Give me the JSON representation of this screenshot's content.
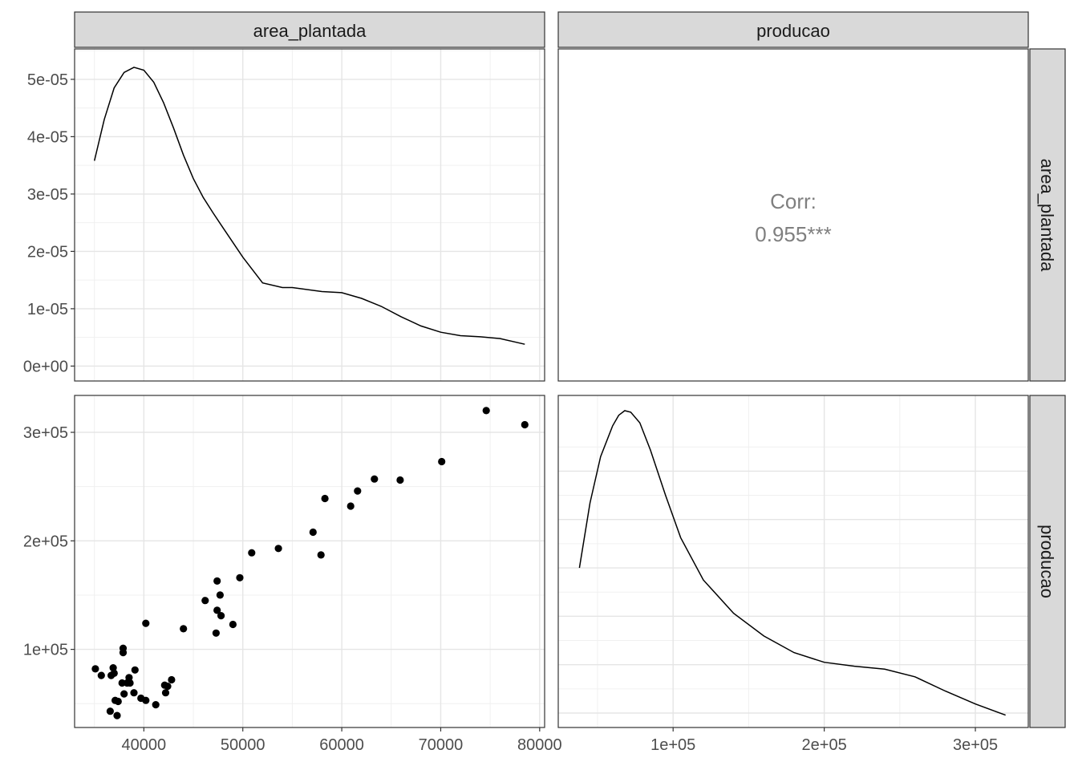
{
  "chart_data": {
    "type": "scatter-matrix",
    "variables": [
      "area_plantada",
      "producao"
    ],
    "panels": [
      {
        "row": 0,
        "col": 0,
        "type": "density",
        "variable": "area_plantada",
        "xlim": [
          33000,
          80500
        ],
        "ylim": [
          -2.6e-06,
          5.53e-05
        ],
        "xticks": [
          40000,
          50000,
          60000,
          70000,
          80000
        ],
        "yticks": [
          0,
          1e-05,
          2e-05,
          3e-05,
          4e-05,
          5e-05
        ],
        "ytick_labels": [
          "0e+00",
          "1e-05",
          "2e-05",
          "3e-05",
          "4e-05",
          "5e-05"
        ],
        "curve": [
          [
            35000,
            3.58e-05
          ],
          [
            36000,
            4.3e-05
          ],
          [
            37000,
            4.85e-05
          ],
          [
            38000,
            5.12e-05
          ],
          [
            39000,
            5.21e-05
          ],
          [
            40000,
            5.16e-05
          ],
          [
            41000,
            4.95e-05
          ],
          [
            42000,
            4.59e-05
          ],
          [
            43000,
            4.15e-05
          ],
          [
            44000,
            3.68e-05
          ],
          [
            45000,
            3.27e-05
          ],
          [
            46000,
            2.94e-05
          ],
          [
            47000,
            2.67e-05
          ],
          [
            48000,
            2.41e-05
          ],
          [
            50000,
            1.9e-05
          ],
          [
            52000,
            1.45e-05
          ],
          [
            54000,
            1.37e-05
          ],
          [
            55000,
            1.37e-05
          ],
          [
            58000,
            1.3e-05
          ],
          [
            60000,
            1.28e-05
          ],
          [
            62000,
            1.18e-05
          ],
          [
            64000,
            1.04e-05
          ],
          [
            66000,
            8.6e-06
          ],
          [
            68000,
            7e-06
          ],
          [
            70000,
            5.9e-06
          ],
          [
            72000,
            5.3e-06
          ],
          [
            74000,
            5.1e-06
          ],
          [
            76000,
            4.8e-06
          ],
          [
            78500,
            3.8e-06
          ]
        ]
      },
      {
        "row": 0,
        "col": 1,
        "type": "corr",
        "label": "Corr:",
        "value": "0.955***"
      },
      {
        "row": 1,
        "col": 0,
        "type": "scatter",
        "xlim": [
          33000,
          80500
        ],
        "ylim": [
          28000,
          334000
        ],
        "xticks": [
          40000,
          50000,
          60000,
          70000,
          80000
        ],
        "yticks": [
          100000,
          200000,
          300000
        ],
        "ytick_labels": [
          "1e+05",
          "2e+05",
          "3e+05"
        ],
        "points": [
          [
            35100,
            82000
          ],
          [
            35700,
            76000
          ],
          [
            36600,
            43000
          ],
          [
            36700,
            76000
          ],
          [
            36900,
            83000
          ],
          [
            37000,
            78000
          ],
          [
            37100,
            53000
          ],
          [
            37300,
            39000
          ],
          [
            37400,
            52000
          ],
          [
            37800,
            69000
          ],
          [
            37900,
            101000
          ],
          [
            37900,
            97000
          ],
          [
            38000,
            59000
          ],
          [
            38300,
            69000
          ],
          [
            38500,
            74000
          ],
          [
            38600,
            69000
          ],
          [
            39000,
            60000
          ],
          [
            39100,
            81000
          ],
          [
            39700,
            55000
          ],
          [
            40200,
            53000
          ],
          [
            40200,
            124000
          ],
          [
            41200,
            49000
          ],
          [
            42100,
            67000
          ],
          [
            42200,
            60000
          ],
          [
            42400,
            66000
          ],
          [
            42800,
            72000
          ],
          [
            44000,
            119000
          ],
          [
            46200,
            145000
          ],
          [
            47300,
            115000
          ],
          [
            47400,
            163000
          ],
          [
            47400,
            136000
          ],
          [
            47700,
            150000
          ],
          [
            47800,
            131000
          ],
          [
            49000,
            123000
          ],
          [
            49700,
            166000
          ],
          [
            50900,
            189000
          ],
          [
            53600,
            193000
          ],
          [
            57100,
            208000
          ],
          [
            57900,
            187000
          ],
          [
            58300,
            239000
          ],
          [
            60900,
            232000
          ],
          [
            61600,
            246000
          ],
          [
            63300,
            257000
          ],
          [
            65900,
            256000
          ],
          [
            70100,
            273000
          ],
          [
            74600,
            320000
          ],
          [
            78500,
            307000
          ]
        ]
      },
      {
        "row": 1,
        "col": 1,
        "type": "density",
        "variable": "producao",
        "xlim": [
          24000,
          335000
        ],
        "xticks": [
          100000,
          200000,
          300000
        ],
        "xtick_labels": [
          "1e+05",
          "2e+05",
          "3e+05"
        ],
        "curve_relative": [
          [
            38000,
            0.48
          ],
          [
            45000,
            0.695
          ],
          [
            52000,
            0.848
          ],
          [
            60000,
            0.95
          ],
          [
            64000,
            0.985
          ],
          [
            68000,
            1.0
          ],
          [
            72000,
            0.995
          ],
          [
            78000,
            0.96
          ],
          [
            85000,
            0.87
          ],
          [
            95000,
            0.72
          ],
          [
            105000,
            0.58
          ],
          [
            120000,
            0.44
          ],
          [
            140000,
            0.33
          ],
          [
            160000,
            0.255
          ],
          [
            180000,
            0.2
          ],
          [
            200000,
            0.168
          ],
          [
            220000,
            0.155
          ],
          [
            240000,
            0.145
          ],
          [
            260000,
            0.12
          ],
          [
            280000,
            0.073
          ],
          [
            300000,
            0.03
          ],
          [
            320000,
            -0.007
          ]
        ]
      }
    ],
    "grid": true
  }
}
